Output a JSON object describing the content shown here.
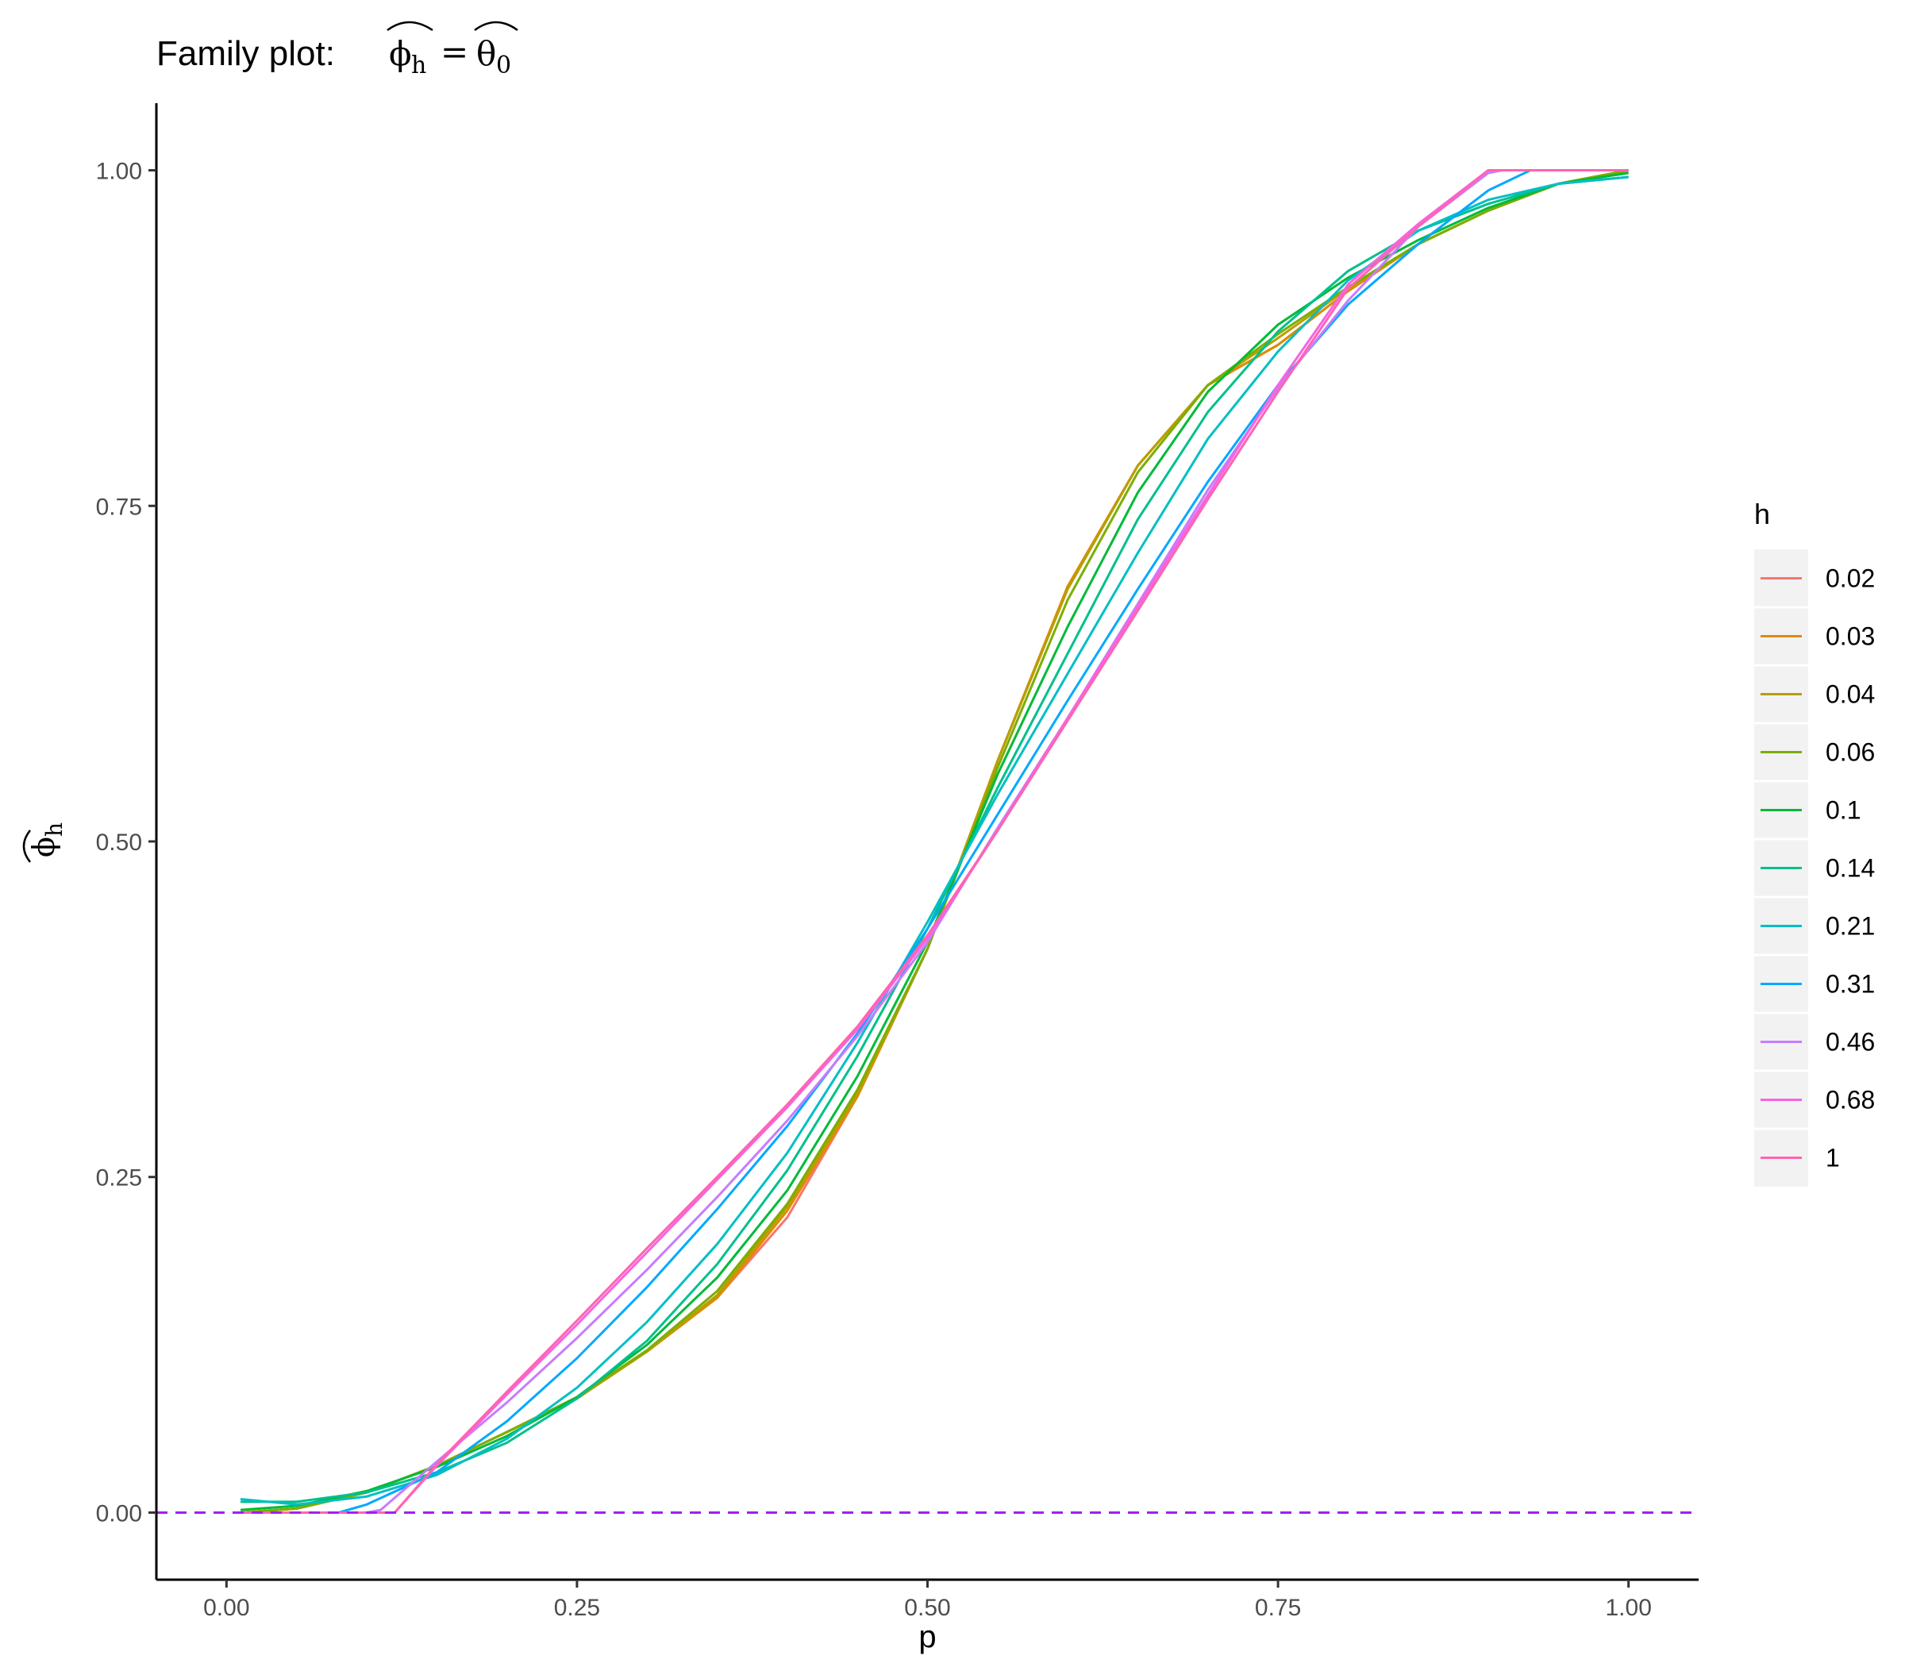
{
  "chart_data": {
    "type": "line",
    "title": "Family plot:",
    "title_math": {
      "lhs": "ϕ",
      "lhs_sub": "h",
      "equals": "=",
      "rhs": "θ",
      "rhs_sub": "0"
    },
    "xlabel": "p",
    "ylabel": "ϕ",
    "ylabel_sub": "h",
    "xlim": [
      -0.05,
      1.05
    ],
    "ylim": [
      -0.05,
      1.05
    ],
    "x_ticks": [
      0,
      0.25,
      0.5,
      0.75,
      1
    ],
    "x_tick_labels": [
      "0.00",
      "0.25",
      "0.50",
      "0.75",
      "1.00"
    ],
    "y_ticks": [
      0,
      0.25,
      0.5,
      0.75,
      1
    ],
    "y_tick_labels": [
      "0.00",
      "0.25",
      "0.50",
      "0.75",
      "1.00"
    ],
    "grid": false,
    "reference_line": {
      "y": 0,
      "color": "#A020F0",
      "style": "dashed"
    },
    "legend": {
      "title": "h",
      "position": "right"
    },
    "series": [
      {
        "name": "0.02",
        "color": "#F8766D",
        "x": [
          0.01,
          0.05,
          0.1,
          0.15,
          0.2,
          0.25,
          0.3,
          0.35,
          0.4,
          0.45,
          0.5,
          0.55,
          0.6,
          0.65,
          0.7,
          0.75,
          0.8,
          0.85,
          0.9,
          0.95,
          1.0
        ],
        "y": [
          0.0,
          0.003,
          0.015,
          0.035,
          0.06,
          0.085,
          0.12,
          0.16,
          0.22,
          0.31,
          0.42,
          0.56,
          0.69,
          0.78,
          0.84,
          0.87,
          0.91,
          0.945,
          0.97,
          0.99,
          1.0
        ]
      },
      {
        "name": "0.03",
        "color": "#DE8C00",
        "x": [
          0.01,
          0.05,
          0.1,
          0.15,
          0.2,
          0.25,
          0.3,
          0.35,
          0.4,
          0.45,
          0.5,
          0.55,
          0.6,
          0.65,
          0.7,
          0.75,
          0.8,
          0.85,
          0.9,
          0.95,
          1.0
        ],
        "y": [
          0.0,
          0.003,
          0.015,
          0.035,
          0.06,
          0.085,
          0.12,
          0.16,
          0.225,
          0.31,
          0.42,
          0.56,
          0.69,
          0.78,
          0.84,
          0.87,
          0.91,
          0.945,
          0.97,
          0.99,
          1.0
        ]
      },
      {
        "name": "0.04",
        "color": "#B79F00",
        "x": [
          0.01,
          0.05,
          0.1,
          0.15,
          0.2,
          0.25,
          0.3,
          0.35,
          0.4,
          0.45,
          0.5,
          0.55,
          0.6,
          0.65,
          0.7,
          0.75,
          0.8,
          0.85,
          0.9,
          0.95,
          1.0
        ],
        "y": [
          0.0,
          0.003,
          0.015,
          0.035,
          0.06,
          0.085,
          0.12,
          0.162,
          0.228,
          0.312,
          0.42,
          0.56,
          0.688,
          0.78,
          0.84,
          0.875,
          0.912,
          0.945,
          0.97,
          0.99,
          1.0
        ]
      },
      {
        "name": "0.06",
        "color": "#7CAE00",
        "x": [
          0.01,
          0.05,
          0.1,
          0.15,
          0.2,
          0.25,
          0.3,
          0.35,
          0.4,
          0.45,
          0.5,
          0.55,
          0.6,
          0.65,
          0.7,
          0.75,
          0.8,
          0.85,
          0.9,
          0.95,
          1.0
        ],
        "y": [
          0.0,
          0.003,
          0.015,
          0.035,
          0.06,
          0.086,
          0.121,
          0.165,
          0.23,
          0.315,
          0.42,
          0.555,
          0.68,
          0.775,
          0.84,
          0.878,
          0.913,
          0.945,
          0.97,
          0.99,
          1.0
        ]
      },
      {
        "name": "0.1",
        "color": "#00BA38",
        "x": [
          0.01,
          0.05,
          0.1,
          0.15,
          0.2,
          0.25,
          0.3,
          0.35,
          0.4,
          0.45,
          0.5,
          0.55,
          0.6,
          0.65,
          0.7,
          0.75,
          0.8,
          0.85,
          0.9,
          0.95,
          1.0
        ],
        "y": [
          0.002,
          0.005,
          0.016,
          0.034,
          0.057,
          0.086,
          0.125,
          0.175,
          0.24,
          0.325,
          0.425,
          0.55,
          0.66,
          0.76,
          0.835,
          0.885,
          0.92,
          0.948,
          0.972,
          0.99,
          0.998
        ]
      },
      {
        "name": "0.14",
        "color": "#00C08B",
        "x": [
          0.01,
          0.05,
          0.1,
          0.15,
          0.2,
          0.25,
          0.3,
          0.35,
          0.4,
          0.45,
          0.5,
          0.55,
          0.6,
          0.65,
          0.7,
          0.75,
          0.8,
          0.85,
          0.9,
          0.95,
          1.0
        ],
        "y": [
          0.008,
          0.008,
          0.015,
          0.03,
          0.052,
          0.085,
          0.128,
          0.185,
          0.255,
          0.34,
          0.435,
          0.54,
          0.64,
          0.74,
          0.82,
          0.88,
          0.925,
          0.955,
          0.975,
          0.99,
          0.995
        ]
      },
      {
        "name": "0.21",
        "color": "#00BFC4",
        "x": [
          0.01,
          0.05,
          0.1,
          0.15,
          0.2,
          0.25,
          0.3,
          0.35,
          0.4,
          0.45,
          0.5,
          0.55,
          0.6,
          0.65,
          0.7,
          0.75,
          0.8,
          0.85,
          0.9,
          0.95,
          1.0
        ],
        "y": [
          0.01,
          0.006,
          0.012,
          0.028,
          0.055,
          0.093,
          0.142,
          0.2,
          0.268,
          0.35,
          0.44,
          0.535,
          0.625,
          0.715,
          0.8,
          0.865,
          0.918,
          0.955,
          0.978,
          0.99,
          0.995
        ]
      },
      {
        "name": "0.31",
        "color": "#00A9FF",
        "x": [
          0.01,
          0.05,
          0.08,
          0.1,
          0.15,
          0.2,
          0.25,
          0.3,
          0.35,
          0.4,
          0.45,
          0.5,
          0.55,
          0.6,
          0.65,
          0.7,
          0.75,
          0.8,
          0.85,
          0.9,
          0.93,
          0.95,
          1.0
        ],
        "y": [
          0.0,
          0.0,
          0.0,
          0.006,
          0.03,
          0.068,
          0.115,
          0.168,
          0.226,
          0.288,
          0.357,
          0.435,
          0.52,
          0.605,
          0.688,
          0.768,
          0.84,
          0.9,
          0.945,
          0.985,
          1.0,
          1.0,
          1.0
        ]
      },
      {
        "name": "0.46",
        "color": "#C77CFF",
        "x": [
          0.01,
          0.05,
          0.1,
          0.11,
          0.15,
          0.2,
          0.25,
          0.3,
          0.35,
          0.4,
          0.45,
          0.5,
          0.55,
          0.6,
          0.65,
          0.7,
          0.75,
          0.8,
          0.85,
          0.9,
          0.91,
          0.95,
          1.0
        ],
        "y": [
          0.0,
          0.0,
          0.0,
          0.002,
          0.038,
          0.082,
          0.13,
          0.181,
          0.235,
          0.292,
          0.355,
          0.425,
          0.51,
          0.592,
          0.677,
          0.762,
          0.838,
          0.903,
          0.958,
          0.998,
          1.0,
          1.0,
          1.0
        ]
      },
      {
        "name": "0.68",
        "color": "#F564E3",
        "x": [
          0.01,
          0.05,
          0.1,
          0.12,
          0.15,
          0.2,
          0.25,
          0.3,
          0.35,
          0.4,
          0.45,
          0.5,
          0.55,
          0.6,
          0.65,
          0.7,
          0.75,
          0.8,
          0.85,
          0.9,
          0.95,
          1.0
        ],
        "y": [
          0.0,
          0.0,
          0.0,
          0.0,
          0.035,
          0.088,
          0.14,
          0.194,
          0.248,
          0.302,
          0.36,
          0.428,
          0.508,
          0.592,
          0.675,
          0.758,
          0.84,
          0.915,
          0.96,
          1.0,
          1.0,
          1.0
        ]
      },
      {
        "name": "1",
        "color": "#FF64B0",
        "x": [
          0.01,
          0.05,
          0.1,
          0.12,
          0.15,
          0.2,
          0.25,
          0.3,
          0.35,
          0.4,
          0.45,
          0.5,
          0.55,
          0.6,
          0.65,
          0.7,
          0.75,
          0.8,
          0.85,
          0.9,
          0.95,
          1.0
        ],
        "y": [
          0.0,
          0.0,
          0.0,
          0.0,
          0.036,
          0.09,
          0.143,
          0.197,
          0.25,
          0.304,
          0.362,
          0.43,
          0.508,
          0.59,
          0.672,
          0.755,
          0.835,
          0.912,
          0.958,
          1.0,
          1.0,
          1.0
        ]
      }
    ]
  }
}
